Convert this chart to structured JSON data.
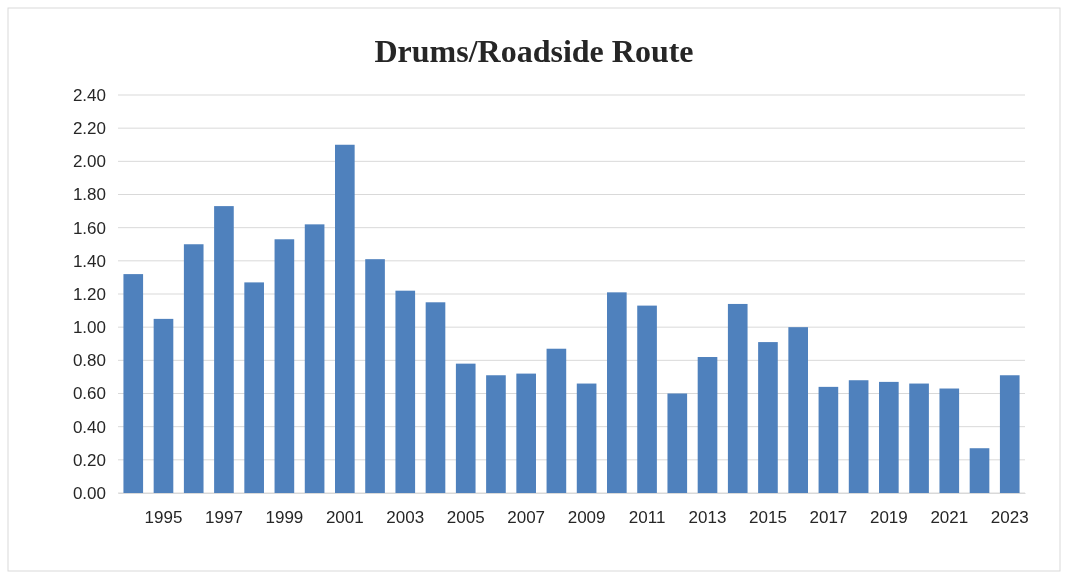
{
  "chart_data": {
    "type": "bar",
    "title": "Drums/Roadside Route",
    "categories": [
      null,
      "1995",
      null,
      "1997",
      null,
      "1999",
      null,
      "2001",
      null,
      "2003",
      null,
      "2005",
      null,
      "2007",
      null,
      "2009",
      null,
      "2011",
      null,
      "2013",
      null,
      "2015",
      null,
      "2017",
      null,
      "2019",
      null,
      "2021",
      null,
      "2023"
    ],
    "values": [
      1.32,
      1.05,
      1.5,
      1.73,
      1.27,
      1.53,
      1.62,
      2.1,
      1.41,
      1.22,
      1.15,
      0.78,
      0.71,
      0.72,
      0.87,
      0.66,
      1.21,
      1.13,
      0.6,
      0.82,
      1.14,
      0.91,
      1.0,
      0.64,
      0.68,
      0.67,
      0.66,
      0.63,
      0.27,
      0.71
    ],
    "color": "#4f81bd",
    "ylim": [
      0,
      2.4
    ],
    "yticks": [
      {
        "value": 0,
        "label": "0.00"
      },
      {
        "value": 0.2,
        "label": "0.20"
      },
      {
        "value": 0.4,
        "label": "0.40"
      },
      {
        "value": 0.6,
        "label": "0.60"
      },
      {
        "value": 0.8,
        "label": "0.80"
      },
      {
        "value": 1,
        "label": "1.00"
      },
      {
        "value": 1.2,
        "label": "1.20"
      },
      {
        "value": 1.4,
        "label": "1.40"
      },
      {
        "value": 1.6,
        "label": "1.60"
      },
      {
        "value": 1.8,
        "label": "1.80"
      },
      {
        "value": 2,
        "label": "2.00"
      },
      {
        "value": 2.2,
        "label": "2.20"
      },
      {
        "value": 2.4,
        "label": "2.40"
      }
    ],
    "grid": "y"
  }
}
